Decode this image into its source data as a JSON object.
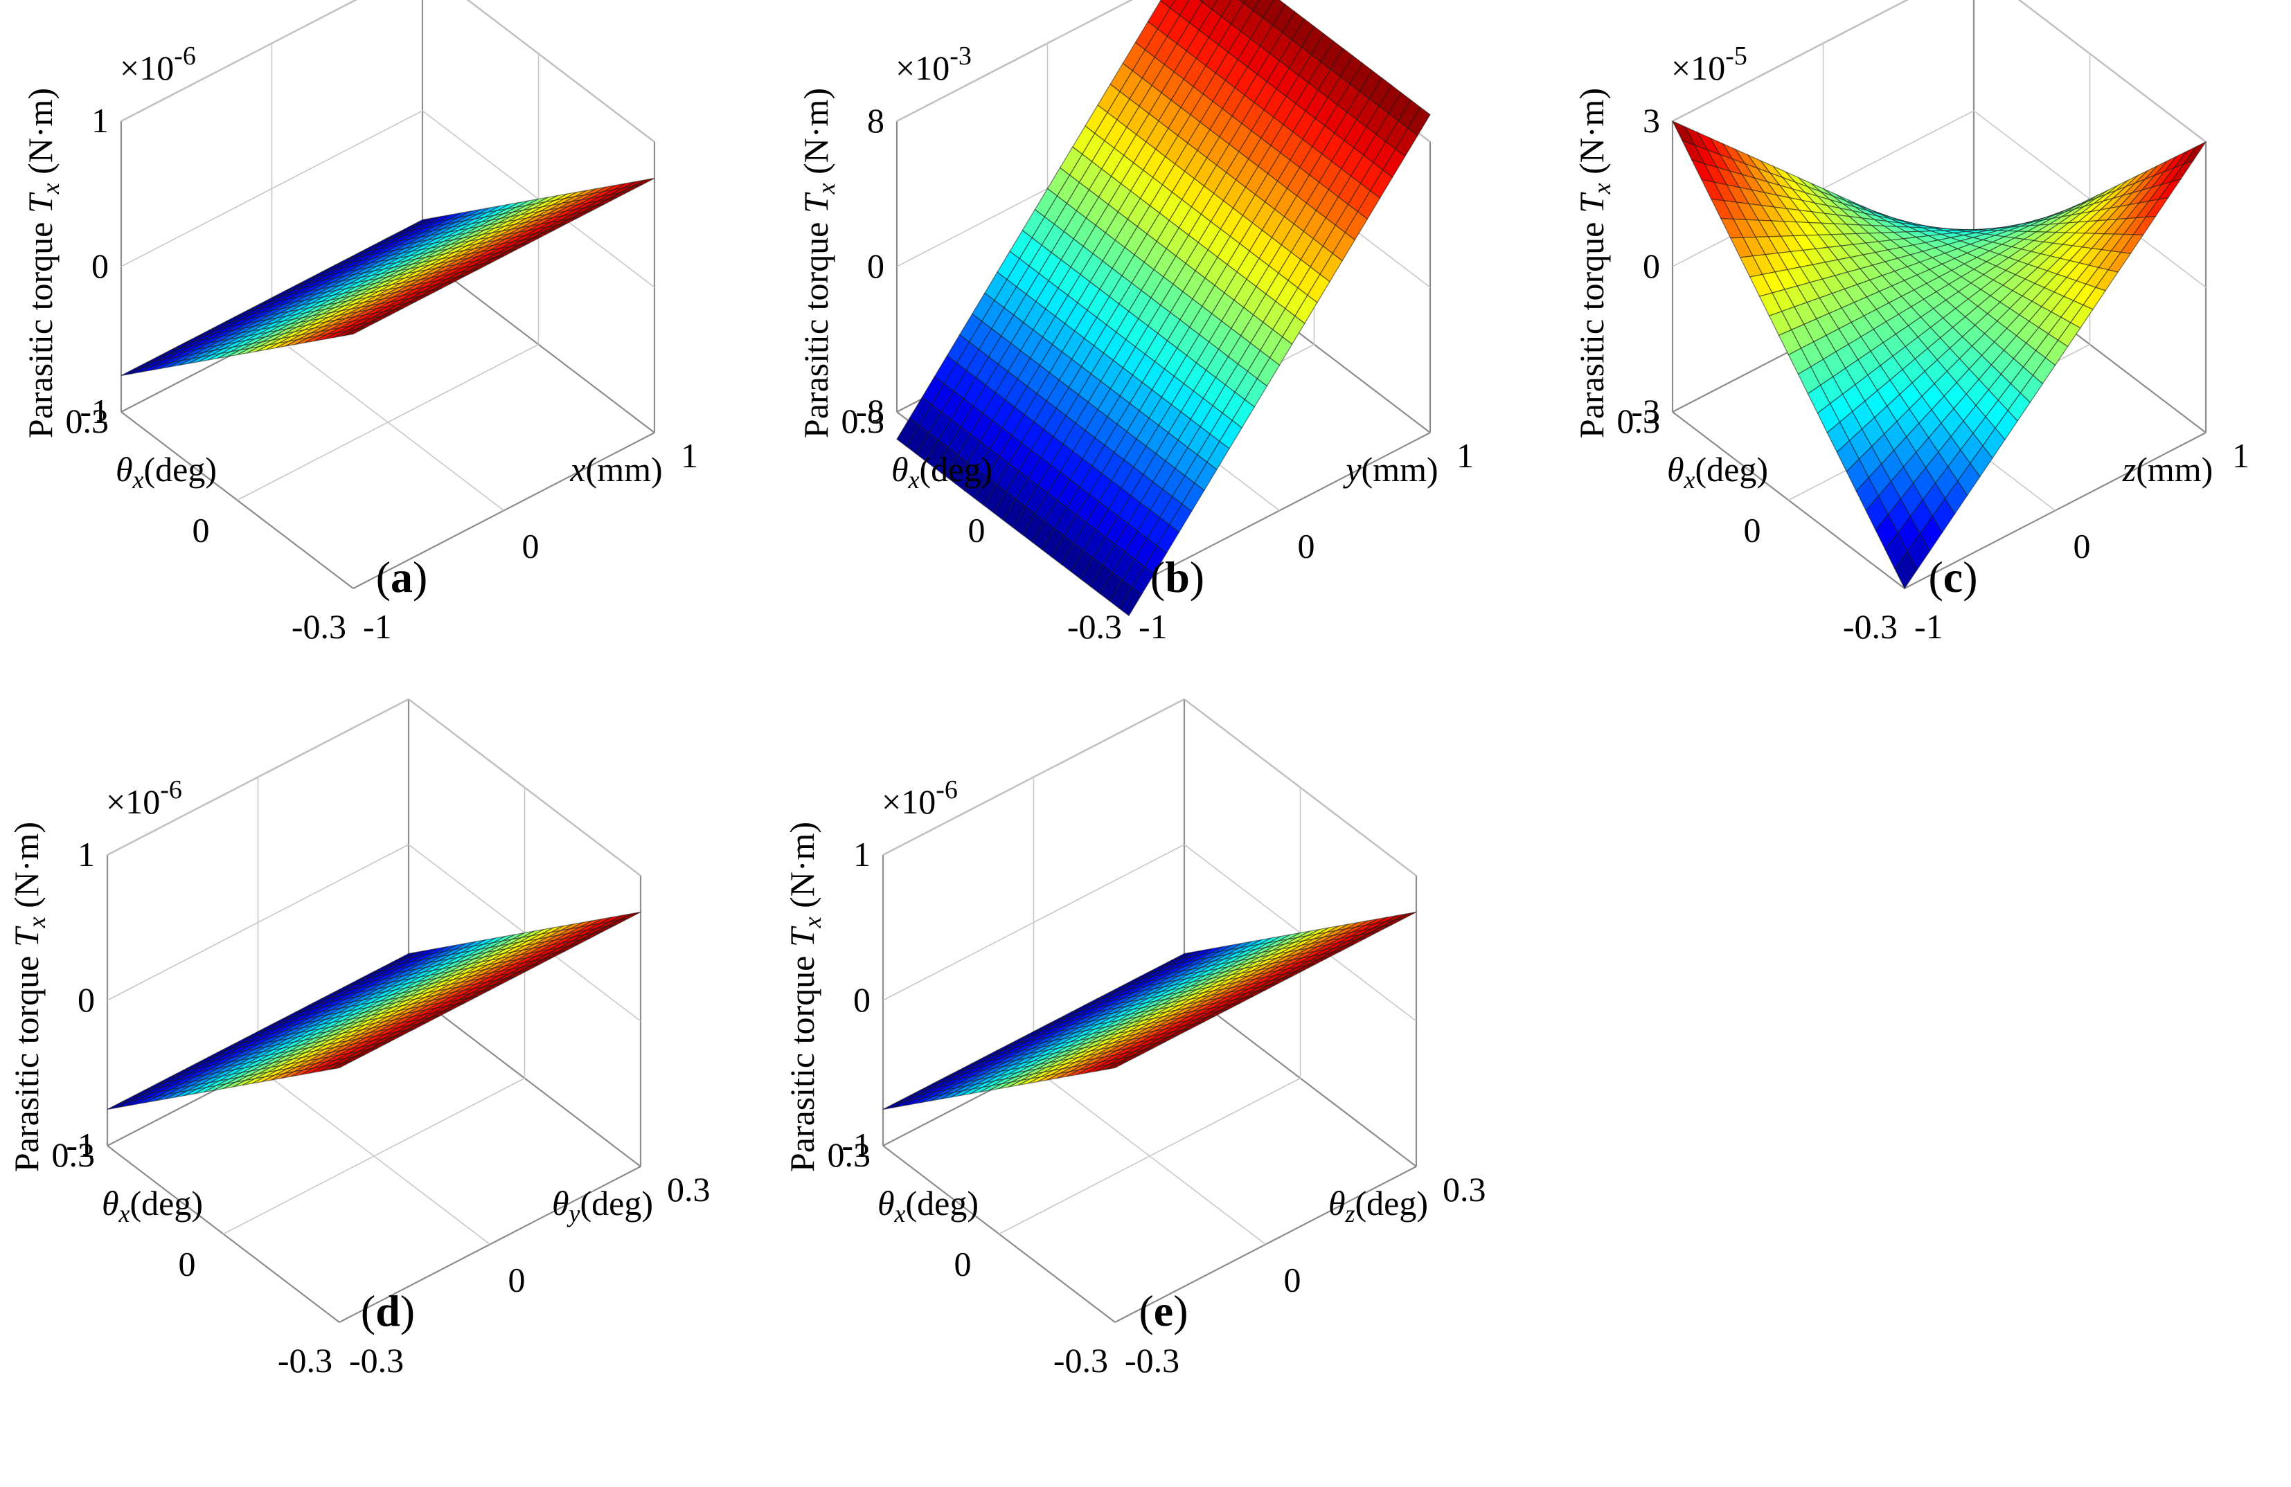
{
  "chart_data": [
    {
      "type": "surface",
      "panel": "(a)",
      "zlabel": "Parasitic torque T_x (N·m)",
      "zlabel_prefix": "Parasitic torque ",
      "zlabel_var": "T",
      "zlabel_sub": "x",
      "zlabel_unit": " (N·m)",
      "exponent_base": "×10",
      "exponent": "-6",
      "z_ticks": [
        "1",
        "0",
        "-1"
      ],
      "zlim": [
        -1,
        1
      ],
      "y_axis": {
        "var": "θ",
        "sub": "x",
        "unit": "(deg)",
        "ticks": [
          "0.3",
          "0",
          "-0.3"
        ],
        "lim": [
          -0.3,
          0.3
        ]
      },
      "x_axis": {
        "var": "x",
        "sub": "",
        "unit": "(mm)",
        "ticks": [
          "-1",
          "0",
          "1"
        ],
        "lim": [
          -1,
          1
        ]
      },
      "surface": {
        "kind": "linear",
        "a": 0,
        "b": -0.75,
        "z_at_corners": {
          "x-1_thx-0.3": 0.75,
          "x1_thx0.3": -0.75
        }
      }
    },
    {
      "type": "surface",
      "panel": "(b)",
      "zlabel": "Parasitic torque T_x (N·m)",
      "zlabel_prefix": "Parasitic torque ",
      "zlabel_var": "T",
      "zlabel_sub": "x",
      "zlabel_unit": " (N·m)",
      "exponent_base": "×10",
      "exponent": "-3",
      "z_ticks": [
        "8",
        "0",
        "-8"
      ],
      "zlim": [
        -8,
        8
      ],
      "y_axis": {
        "var": "θ",
        "sub": "x",
        "unit": "(deg)",
        "ticks": [
          "0.3",
          "0",
          "-0.3"
        ],
        "lim": [
          -0.3,
          0.3
        ]
      },
      "x_axis": {
        "var": "y",
        "sub": "",
        "unit": "(mm)",
        "ticks": [
          "-1",
          "0",
          "1"
        ],
        "lim": [
          -1,
          1
        ]
      },
      "surface": {
        "kind": "linear",
        "a": 9.5,
        "b": 0,
        "z_range": [
          -9.5,
          9.5
        ]
      }
    },
    {
      "type": "surface",
      "panel": "(c)",
      "zlabel": "Parasitic torque T_x (N·m)",
      "zlabel_prefix": "Parasitic torque ",
      "zlabel_var": "T",
      "zlabel_sub": "x",
      "zlabel_unit": " (N·m)",
      "exponent_base": "×10",
      "exponent": "-5",
      "z_ticks": [
        "3",
        "0",
        "-3"
      ],
      "zlim": [
        -3,
        3
      ],
      "y_axis": {
        "var": "θ",
        "sub": "x",
        "unit": "(deg)",
        "ticks": [
          "0.3",
          "0",
          "-0.3"
        ],
        "lim": [
          -0.3,
          0.3
        ]
      },
      "x_axis": {
        "var": "z",
        "sub": "",
        "unit": "(mm)",
        "ticks": [
          "-1",
          "0",
          "1"
        ],
        "lim": [
          -1,
          1
        ]
      },
      "surface": {
        "kind": "saddle",
        "c": -3,
        "z_range": [
          -3,
          3
        ]
      }
    },
    {
      "type": "surface",
      "panel": "(d)",
      "zlabel": "Parasitic torque T_x (N·m)",
      "zlabel_prefix": "Parasitic torque ",
      "zlabel_var": "T",
      "zlabel_sub": "x",
      "zlabel_unit": " (N·m)",
      "exponent_base": "×10",
      "exponent": "-6",
      "z_ticks": [
        "1",
        "0",
        "-1"
      ],
      "zlim": [
        -1,
        1
      ],
      "y_axis": {
        "var": "θ",
        "sub": "x",
        "unit": "(deg)",
        "ticks": [
          "0.3",
          "0",
          "-0.3"
        ],
        "lim": [
          -0.3,
          0.3
        ]
      },
      "x_axis": {
        "var": "θ",
        "sub": "y",
        "unit": "(deg)",
        "ticks": [
          "-0.3",
          "0",
          "0.3"
        ],
        "lim": [
          -0.3,
          0.3
        ]
      },
      "surface": {
        "kind": "linear",
        "a": 0,
        "b": -0.75
      }
    },
    {
      "type": "surface",
      "panel": "(e)",
      "zlabel": "Parasitic torque T_x (N·m)",
      "zlabel_prefix": "Parasitic torque ",
      "zlabel_var": "T",
      "zlabel_sub": "x",
      "zlabel_unit": " (N·m)",
      "exponent_base": "×10",
      "exponent": "-6",
      "z_ticks": [
        "1",
        "0",
        "-1"
      ],
      "zlim": [
        -1,
        1
      ],
      "y_axis": {
        "var": "θ",
        "sub": "x",
        "unit": "(deg)",
        "ticks": [
          "0.3",
          "0",
          "-0.3"
        ],
        "lim": [
          -0.3,
          0.3
        ]
      },
      "x_axis": {
        "var": "θ",
        "sub": "z",
        "unit": "(deg)",
        "ticks": [
          "-0.3",
          "0",
          "0.3"
        ],
        "lim": [
          -0.3,
          0.3
        ]
      },
      "surface": {
        "kind": "linear",
        "a": 0,
        "b": -0.75
      }
    }
  ],
  "colormap": "jet",
  "grid": true
}
